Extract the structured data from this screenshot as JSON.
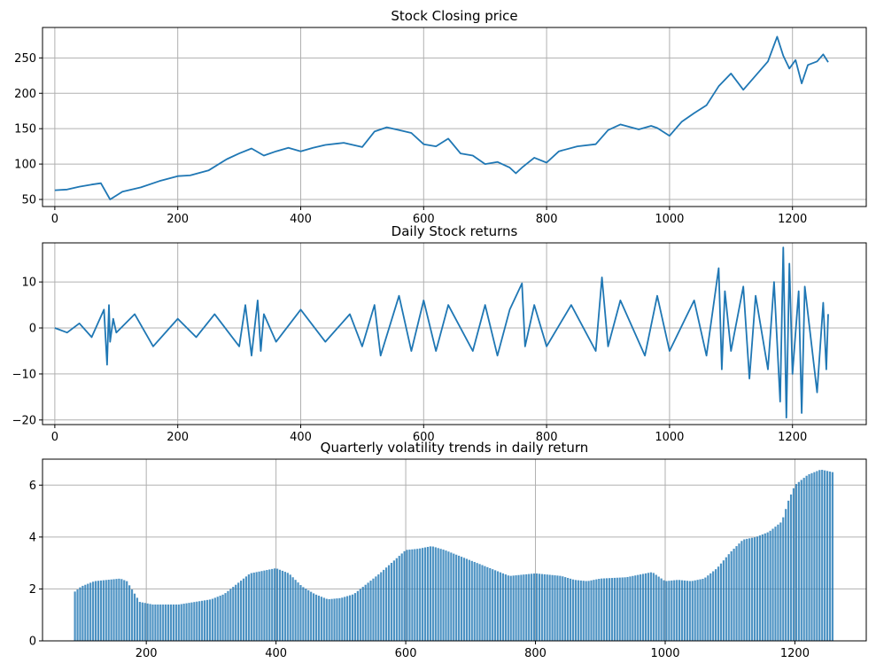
{
  "chart_data": [
    {
      "type": "line",
      "title": "Stock Closing price",
      "xlim": [
        -20,
        1320
      ],
      "ylim": [
        40,
        293
      ],
      "xticks": [
        0,
        200,
        400,
        600,
        800,
        1000,
        1200
      ],
      "yticks": [
        50,
        100,
        150,
        200,
        250
      ],
      "grid": true,
      "color": "#1f77b4",
      "series": [
        {
          "x": [
            0,
            20,
            40,
            60,
            75,
            90,
            110,
            140,
            170,
            200,
            220,
            250,
            280,
            300,
            320,
            340,
            360,
            380,
            400,
            420,
            440,
            470,
            500,
            520,
            540,
            560,
            580,
            600,
            620,
            640,
            660,
            680,
            700,
            720,
            740,
            750,
            760,
            780,
            800,
            820,
            850,
            880,
            900,
            920,
            950,
            970,
            980,
            1000,
            1020,
            1040,
            1060,
            1080,
            1100,
            1120,
            1140,
            1160,
            1175,
            1185,
            1195,
            1205,
            1215,
            1225,
            1240,
            1250,
            1258
          ],
          "y": [
            63,
            64,
            68,
            71,
            73,
            50,
            61,
            67,
            76,
            83,
            84,
            91,
            107,
            115,
            122,
            112,
            118,
            123,
            118,
            123,
            127,
            130,
            124,
            146,
            152,
            148,
            144,
            128,
            125,
            136,
            115,
            112,
            100,
            103,
            95,
            87,
            95,
            109,
            102,
            118,
            125,
            128,
            148,
            156,
            149,
            154,
            151,
            140,
            160,
            172,
            183,
            210,
            228,
            205,
            225,
            245,
            280,
            253,
            235,
            247,
            214,
            240,
            245,
            255,
            244
          ]
        }
      ]
    },
    {
      "type": "line",
      "title": "Daily Stock returns",
      "xlim": [
        -20,
        1320
      ],
      "ylim": [
        -21,
        18.5
      ],
      "xticks": [
        0,
        200,
        400,
        600,
        800,
        1000,
        1200
      ],
      "yticks": [
        -20,
        -10,
        0,
        10
      ],
      "grid": true,
      "color": "#1f77b4",
      "series": [
        {
          "x": [
            0,
            20,
            40,
            60,
            80,
            85,
            88,
            90,
            95,
            100,
            130,
            160,
            200,
            230,
            260,
            300,
            310,
            320,
            330,
            335,
            340,
            360,
            400,
            440,
            480,
            500,
            520,
            530,
            560,
            580,
            600,
            620,
            640,
            680,
            700,
            720,
            740,
            760,
            765,
            780,
            800,
            840,
            880,
            890,
            900,
            920,
            960,
            980,
            1000,
            1040,
            1060,
            1080,
            1085,
            1090,
            1100,
            1120,
            1130,
            1140,
            1160,
            1170,
            1180,
            1185,
            1190,
            1195,
            1200,
            1210,
            1215,
            1220,
            1240,
            1250,
            1255,
            1258
          ],
          "y": [
            0,
            -1,
            1,
            -2,
            4,
            -8,
            5,
            -3,
            2,
            -1,
            3,
            -4,
            2,
            -2,
            3,
            -4,
            5,
            -6,
            6,
            -5,
            3,
            -3,
            4,
            -3,
            3,
            -4,
            5,
            -6,
            7,
            -5,
            6,
            -5,
            5,
            -5,
            5,
            -6,
            4,
            9.7,
            -4,
            5,
            -4,
            5,
            -5,
            11,
            -4,
            6,
            -6,
            7,
            -5,
            6,
            -6,
            13,
            -9,
            8,
            -5,
            9,
            -11,
            7,
            -9,
            10,
            -16,
            17.5,
            -19.5,
            14,
            -10,
            8,
            -18.5,
            9,
            -14,
            5.5,
            -9,
            3
          ]
        }
      ]
    },
    {
      "type": "bar",
      "title": "Quarterly volatility trends in daily return",
      "xlim": [
        40,
        1310
      ],
      "ylim": [
        0,
        7
      ],
      "xticks": [
        200,
        400,
        600,
        800,
        1000,
        1200
      ],
      "yticks": [
        0,
        2,
        4,
        6
      ],
      "grid": true,
      "color": "#1f77b4",
      "x_start": 90,
      "x_end": 1258,
      "step": 4,
      "profile": {
        "x": [
          90,
          100,
          120,
          160,
          170,
          190,
          210,
          250,
          300,
          320,
          340,
          360,
          380,
          400,
          420,
          440,
          460,
          480,
          500,
          520,
          560,
          600,
          620,
          640,
          660,
          700,
          720,
          740,
          760,
          800,
          840,
          860,
          880,
          900,
          940,
          980,
          1000,
          1020,
          1040,
          1060,
          1080,
          1100,
          1120,
          1140,
          1160,
          1180,
          1190,
          1200,
          1220,
          1240,
          1258
        ],
        "y": [
          1.9,
          2.1,
          2.3,
          2.4,
          2.3,
          1.5,
          1.4,
          1.4,
          1.6,
          1.8,
          2.2,
          2.6,
          2.7,
          2.8,
          2.6,
          2.1,
          1.8,
          1.6,
          1.65,
          1.8,
          2.6,
          3.5,
          3.55,
          3.65,
          3.5,
          3.1,
          2.9,
          2.7,
          2.5,
          2.6,
          2.5,
          2.35,
          2.3,
          2.4,
          2.45,
          2.65,
          2.3,
          2.35,
          2.3,
          2.4,
          2.8,
          3.4,
          3.9,
          4.0,
          4.2,
          4.6,
          5.4,
          6.0,
          6.4,
          6.6,
          6.5
        ]
      }
    }
  ]
}
